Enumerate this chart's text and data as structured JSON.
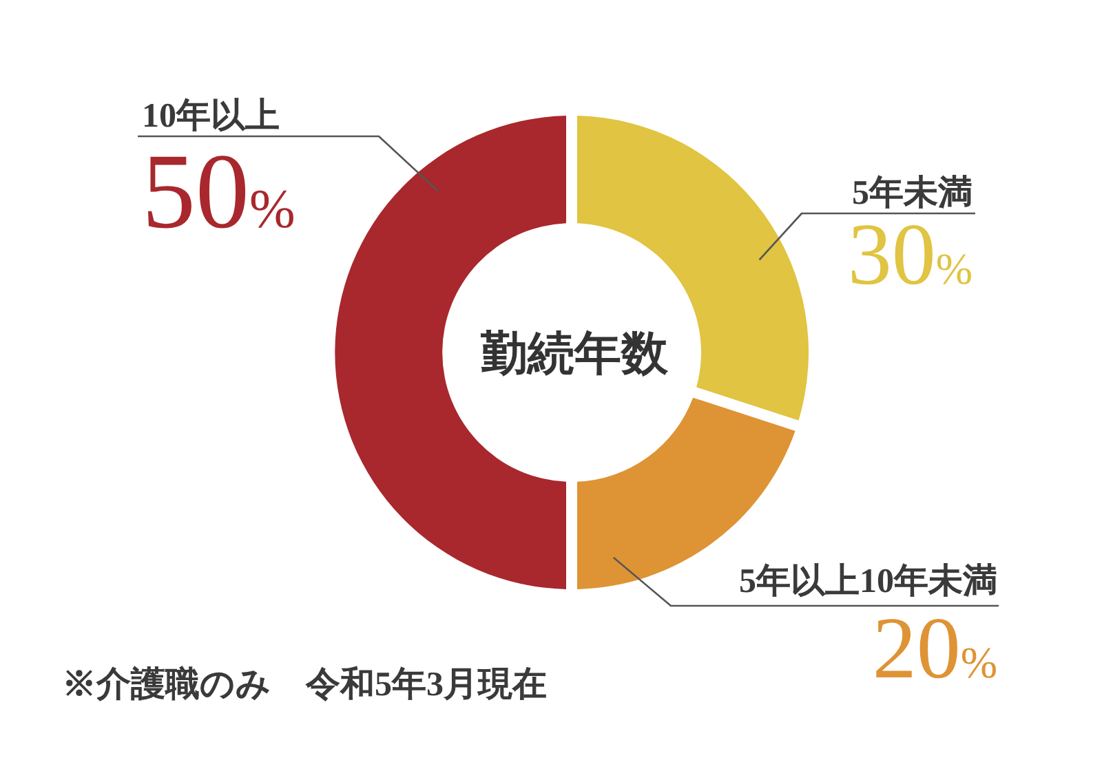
{
  "chart_data": {
    "type": "donut",
    "title": "勤続年数",
    "categories": [
      "5年未満",
      "5年以上10年未満",
      "10年以上"
    ],
    "values": [
      30,
      20,
      50
    ],
    "colors": [
      "#e0c442",
      "#de9335",
      "#a8282d"
    ],
    "value_labels": [
      "30%",
      "20%",
      "50%"
    ],
    "annotations": [
      "※介護職のみ　令和5年3月現在"
    ]
  }
}
